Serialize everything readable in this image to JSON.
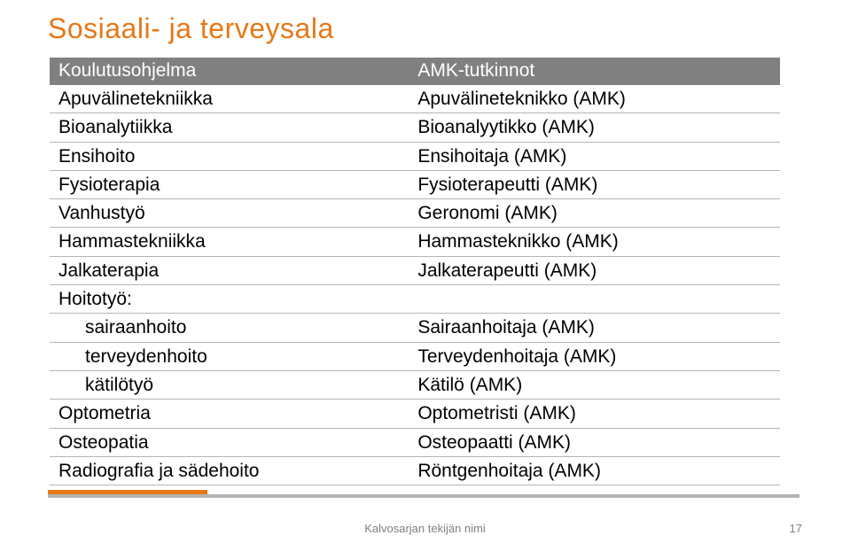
{
  "title": "Sosiaali- ja terveysala",
  "table": {
    "headers": [
      "Koulutusohjelma",
      "AMK-tutkinnot"
    ],
    "rows": [
      {
        "indent": false,
        "c0": "Apuvälinetekniikka",
        "c1": "Apuvälineteknikko (AMK)"
      },
      {
        "indent": false,
        "c0": "Bioanalytiikka",
        "c1": "Bioanalyytikko (AMK)"
      },
      {
        "indent": false,
        "c0": "Ensihoito",
        "c1": "Ensihoitaja (AMK)"
      },
      {
        "indent": false,
        "c0": "Fysioterapia",
        "c1": "Fysioterapeutti (AMK)"
      },
      {
        "indent": false,
        "c0": "Vanhustyö",
        "c1": "Geronomi (AMK)"
      },
      {
        "indent": false,
        "c0": "Hammastekniikka",
        "c1": "Hammasteknikko (AMK)"
      },
      {
        "indent": false,
        "c0": "Jalkaterapia",
        "c1": "Jalkaterapeutti (AMK)"
      },
      {
        "indent": false,
        "c0": "Hoitotyö:",
        "c1": ""
      },
      {
        "indent": true,
        "c0": "sairaanhoito",
        "c1": "Sairaanhoitaja (AMK)"
      },
      {
        "indent": true,
        "c0": "terveydenhoito",
        "c1": "Terveydenhoitaja (AMK)"
      },
      {
        "indent": true,
        "c0": "kätilötyö",
        "c1": "Kätilö (AMK)"
      },
      {
        "indent": false,
        "c0": "Optometria",
        "c1": "Optometristi (AMK)"
      },
      {
        "indent": false,
        "c0": "Osteopatia",
        "c1": "Osteopaatti (AMK)"
      },
      {
        "indent": false,
        "c0": "Radiografia ja sädehoito",
        "c1": "Röntgenhoitaja (AMK)"
      }
    ]
  },
  "footer": {
    "author": "Kalvosarjan tekijän nimi",
    "page": "17"
  },
  "colors": {
    "accent": "#e67817",
    "header_bg": "#808080",
    "header_text": "#ffffff",
    "cell_text": "#000000",
    "grid": "#b5b5b5",
    "footer_gray": "#b3b3b3",
    "footer_text": "#808080",
    "background": "#ffffff"
  }
}
